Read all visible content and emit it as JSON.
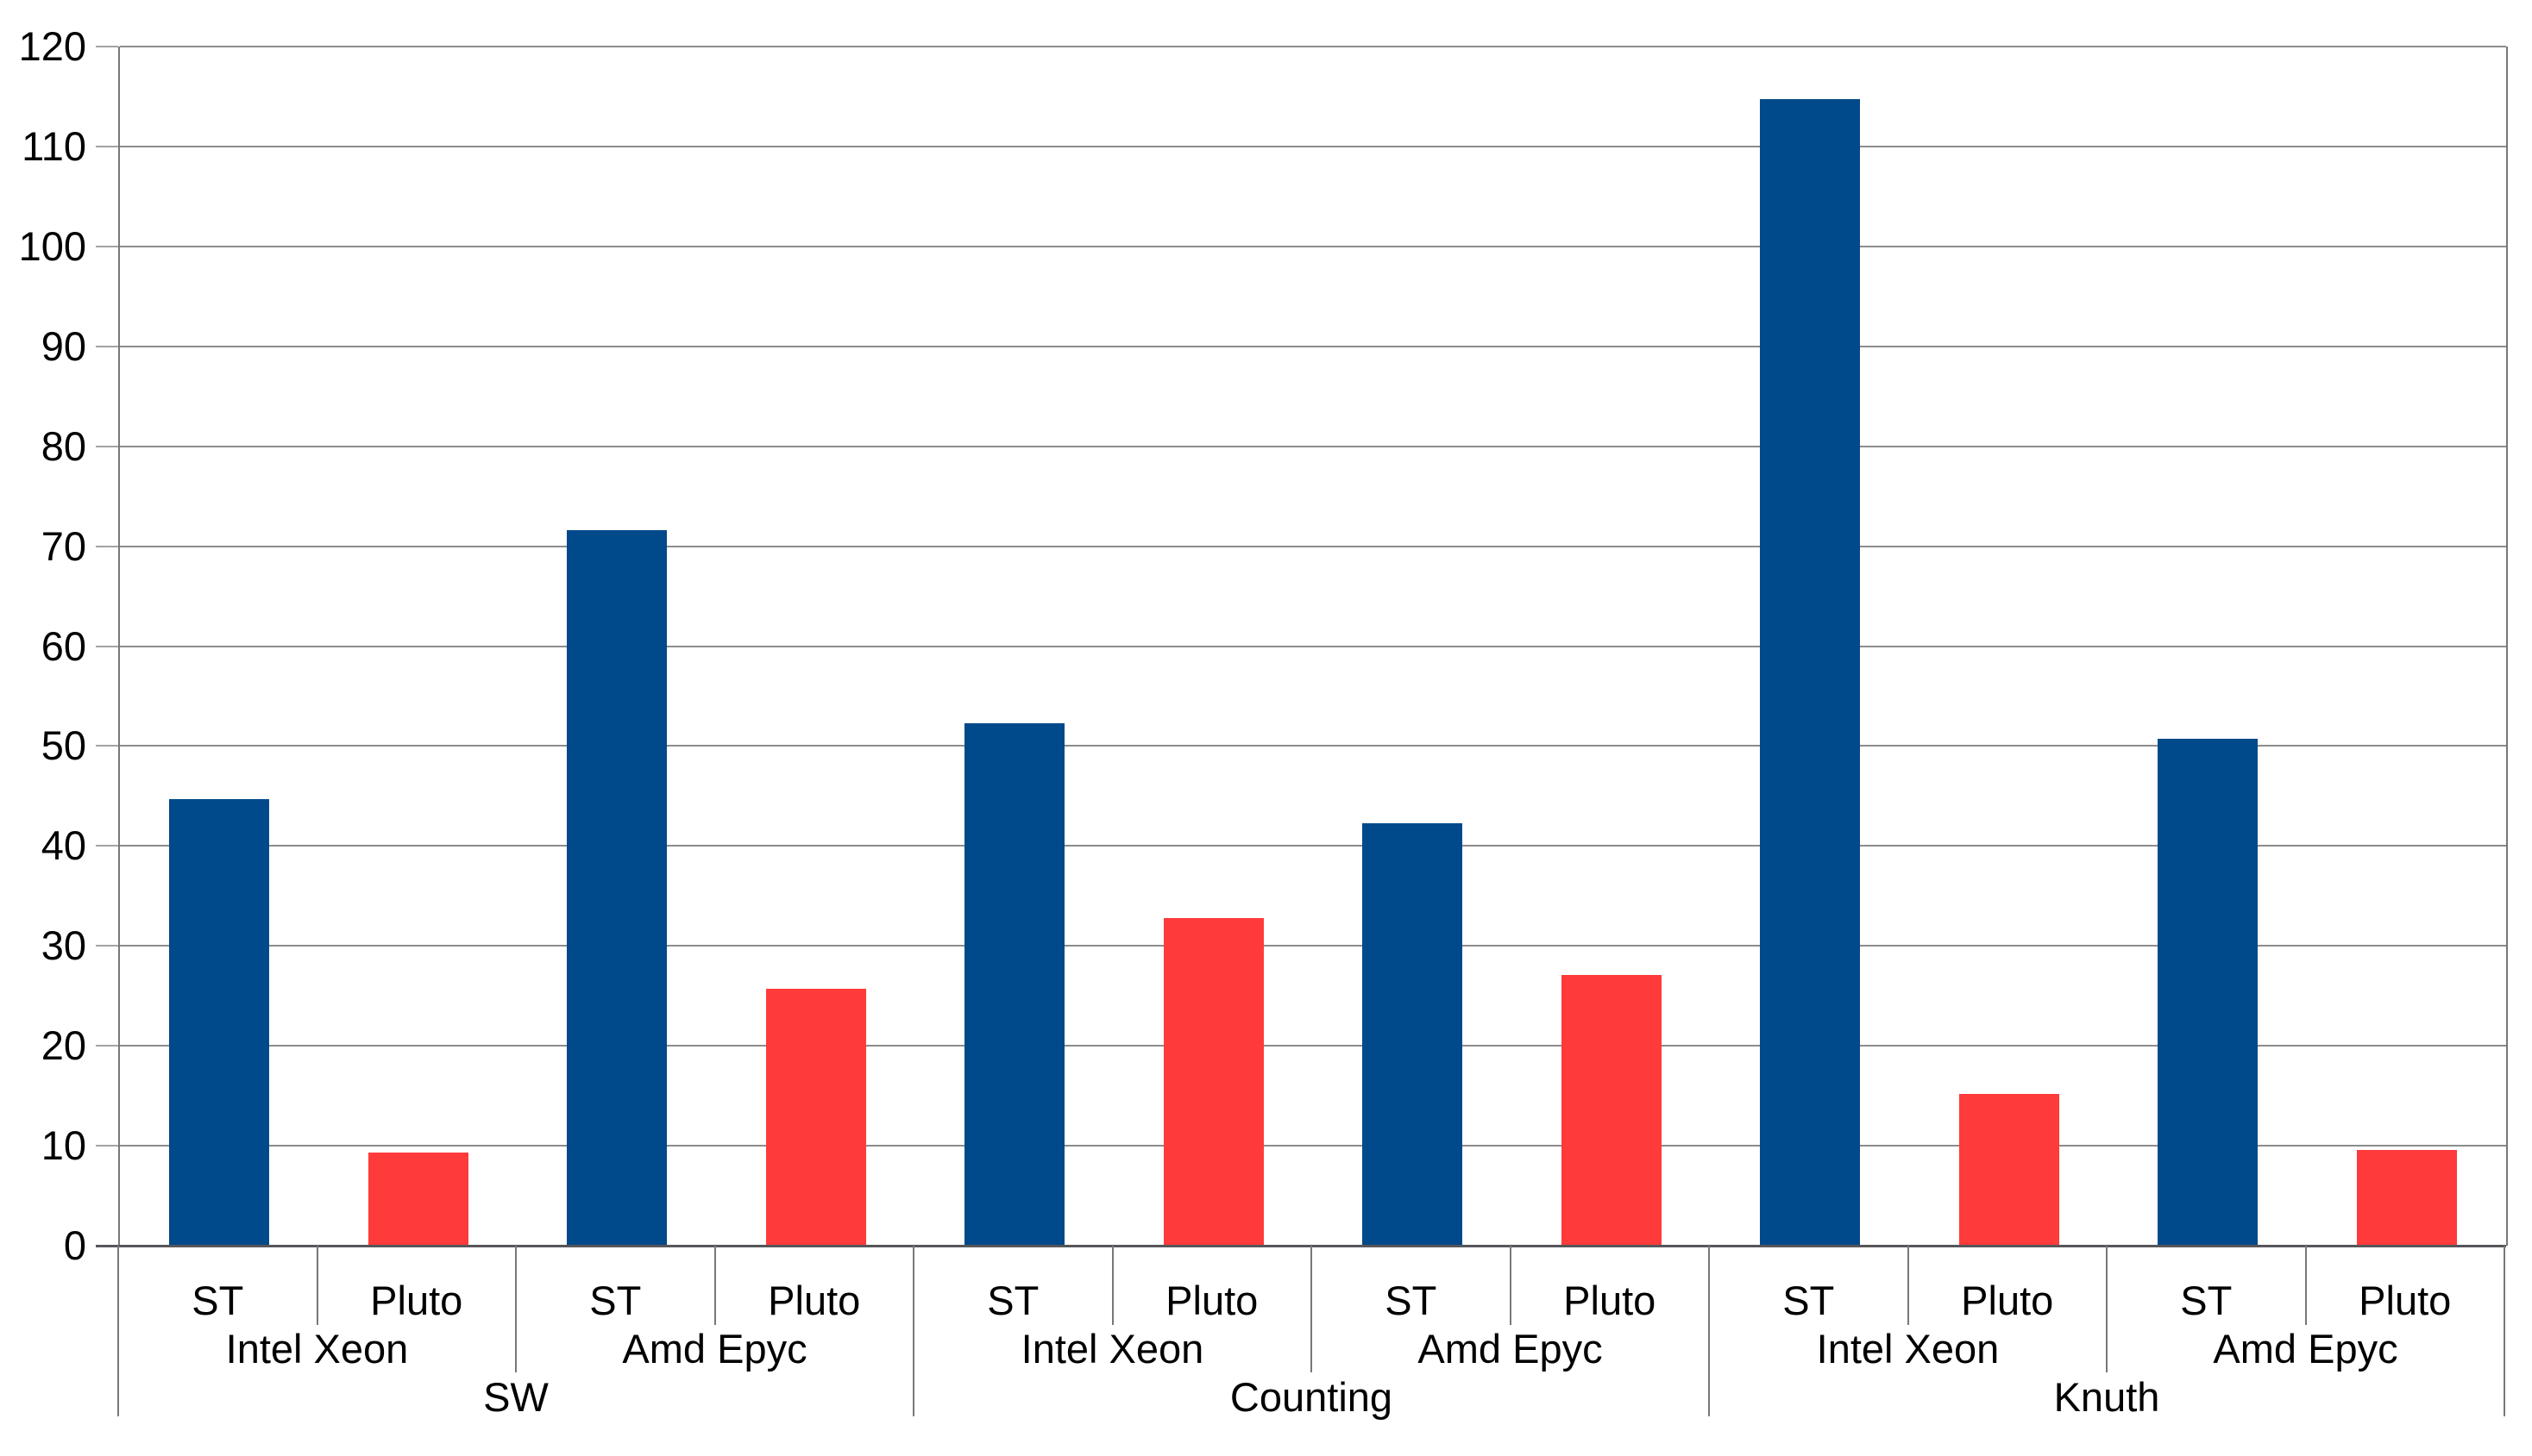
{
  "chart_data": {
    "type": "bar",
    "title": "",
    "xlabel": "",
    "ylabel": "",
    "ylim": [
      0,
      120
    ],
    "ytick_step": 10,
    "grid": true,
    "legend_position": "none",
    "yticks": [
      0,
      10,
      20,
      30,
      40,
      50,
      60,
      70,
      80,
      90,
      100,
      110,
      120
    ],
    "series": [
      {
        "name": "ST",
        "color": "#00498a",
        "values": [
          44.7,
          71.6,
          52.3,
          42.3,
          114.7,
          50.7
        ]
      },
      {
        "name": "Pluto",
        "color": "#ff3a3a",
        "values": [
          9.3,
          25.7,
          32.8,
          27.1,
          15.2,
          9.6
        ]
      }
    ],
    "groups": [
      {
        "label": "SW",
        "subgroups": [
          {
            "label": "Intel Xeon",
            "bars": [
              {
                "label": "ST",
                "value": 44.7
              },
              {
                "label": "Pluto",
                "value": 9.3
              }
            ]
          },
          {
            "label": "Amd Epyc",
            "bars": [
              {
                "label": "ST",
                "value": 71.6
              },
              {
                "label": "Pluto",
                "value": 25.7
              }
            ]
          }
        ]
      },
      {
        "label": "Counting",
        "subgroups": [
          {
            "label": "Intel Xeon",
            "bars": [
              {
                "label": "ST",
                "value": 52.3
              },
              {
                "label": "Pluto",
                "value": 32.8
              }
            ]
          },
          {
            "label": "Amd Epyc",
            "bars": [
              {
                "label": "ST",
                "value": 42.3
              },
              {
                "label": "Pluto",
                "value": 27.1
              }
            ]
          }
        ]
      },
      {
        "label": "Knuth",
        "subgroups": [
          {
            "label": "Intel Xeon",
            "bars": [
              {
                "label": "ST",
                "value": 114.7
              },
              {
                "label": "Pluto",
                "value": 15.2
              }
            ]
          },
          {
            "label": "Amd Epyc",
            "bars": [
              {
                "label": "ST",
                "value": 50.7
              },
              {
                "label": "Pluto",
                "value": 9.6
              }
            ]
          }
        ]
      }
    ]
  },
  "colors": {
    "bar_st": "#00498a",
    "bar_pluto": "#ff3a3a",
    "gridline": "#8c8c8c",
    "overhang_tick": "#a3a3a3",
    "axis_line": "#56565a",
    "category_tick": "#787878",
    "plot_border": "#787878",
    "text": "#000000",
    "background": "#ffffff"
  }
}
